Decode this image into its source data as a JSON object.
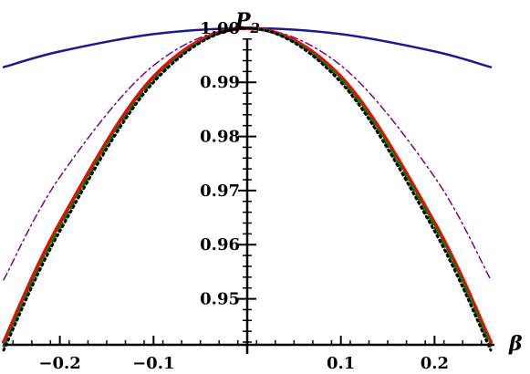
{
  "chart_data": {
    "type": "line",
    "xlabel": "β",
    "ylabel": {
      "main": "P",
      "subscript": "2"
    },
    "xlim": [
      -0.26,
      0.26
    ],
    "ylim": [
      0.9415,
      1.0015
    ],
    "x_ticks": [
      {
        "value": -0.2,
        "label": "−0.2"
      },
      {
        "value": -0.1,
        "label": "−0.1"
      },
      {
        "value": 0.1,
        "label": "0.1"
      },
      {
        "value": 0.2,
        "label": "0.2"
      }
    ],
    "y_ticks": [
      {
        "value": 0.95,
        "label": "0.95"
      },
      {
        "value": 0.96,
        "label": "0.96"
      },
      {
        "value": 0.97,
        "label": "0.97"
      },
      {
        "value": 0.98,
        "label": "0.98"
      },
      {
        "value": 0.99,
        "label": "0.99"
      },
      {
        "value": 1.0,
        "label": "1.00"
      }
    ],
    "grid": false,
    "legend": "none",
    "series": [
      {
        "color": "#1a1a8c",
        "style": "solid",
        "width": 2.5,
        "x": [
          -0.26,
          -0.2,
          -0.1,
          0,
          0.1,
          0.2,
          0.26
        ],
        "y": [
          0.9928,
          0.9957,
          0.9989,
          1.0,
          0.9989,
          0.9957,
          0.9928
        ]
      },
      {
        "color": "#800080",
        "style": "dashdot",
        "width": 1.5,
        "x": [
          -0.26,
          -0.2,
          -0.1,
          0,
          0.1,
          0.2,
          0.26
        ],
        "y": [
          0.9535,
          0.9725,
          0.9931,
          1.0,
          0.9931,
          0.9725,
          0.9535
        ]
      },
      {
        "color": "#ff0000",
        "style": "solid",
        "width": 4,
        "x": [
          -0.26,
          -0.2,
          -0.1,
          0,
          0.1,
          0.2,
          0.26
        ],
        "y": [
          0.942,
          0.964,
          0.991,
          1.0,
          0.991,
          0.964,
          0.942
        ]
      },
      {
        "color": "#008000",
        "style": "dashed",
        "width": 3,
        "x": [
          -0.26,
          -0.2,
          -0.1,
          0,
          0.1,
          0.2,
          0.26
        ],
        "y": [
          0.9413,
          0.9633,
          0.9905,
          1.0,
          0.9905,
          0.9633,
          0.9413
        ]
      },
      {
        "color": "#000000",
        "style": "dotted",
        "width": 3,
        "x": [
          -0.26,
          -0.2,
          -0.1,
          0,
          0.1,
          0.2,
          0.26
        ],
        "y": [
          0.9405,
          0.9625,
          0.99,
          1.0,
          0.99,
          0.9625,
          0.9405
        ]
      }
    ]
  }
}
